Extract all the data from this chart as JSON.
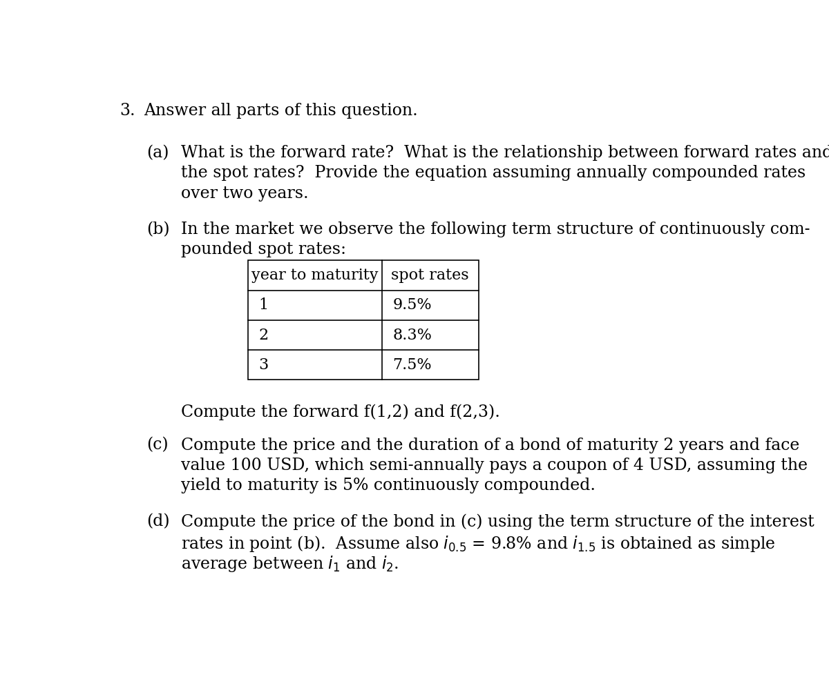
{
  "bg_color": "#ffffff",
  "text_color": "#000000",
  "fig_width": 12.0,
  "fig_height": 9.94,
  "main_number": "3.",
  "main_text": "Answer all parts of this question.",
  "part_a_label": "(a)",
  "part_a_line1": "What is the forward rate?  What is the relationship between forward rates and",
  "part_a_line2": "the spot rates?  Provide the equation assuming annually compounded rates",
  "part_a_line3": "over two years.",
  "part_b_label": "(b)",
  "part_b_line1": "In the market we observe the following term structure of continuously com-",
  "part_b_line2": "pounded spot rates:",
  "table_col1_header": "year to maturity",
  "table_col2_header": "spot rates",
  "table_data": [
    [
      "1",
      "9.5%"
    ],
    [
      "2",
      "8.3%"
    ],
    [
      "3",
      "7.5%"
    ]
  ],
  "part_b_compute": "Compute the forward f(1,2) and f(2,3).",
  "part_c_label": "(c)",
  "part_c_line1": "Compute the price and the duration of a bond of maturity 2 years and face",
  "part_c_line2": "value 100 USD, which semi-annually pays a coupon of 4 USD, assuming the",
  "part_c_line3": "yield to maturity is 5% continuously compounded.",
  "part_d_label": "(d)",
  "part_d_line1": "Compute the price of the bond in (c) using the term structure of the interest",
  "part_d_line2_pre": "rates in point (b).  Assume also ",
  "part_d_line2_math1": "$i_{0.5}$",
  "part_d_line2_eq": " = 9.8% and ",
  "part_d_line2_math2": "$i_{1.5}$",
  "part_d_line2_post": " is obtained as simple",
  "part_d_line3_pre": "average between ",
  "part_d_line3_math1": "$i_1$",
  "part_d_line3_and": " and ",
  "part_d_line3_math2": "$i_2$",
  "part_d_line3_post": ".",
  "font_size": 17,
  "font_family": "serif"
}
